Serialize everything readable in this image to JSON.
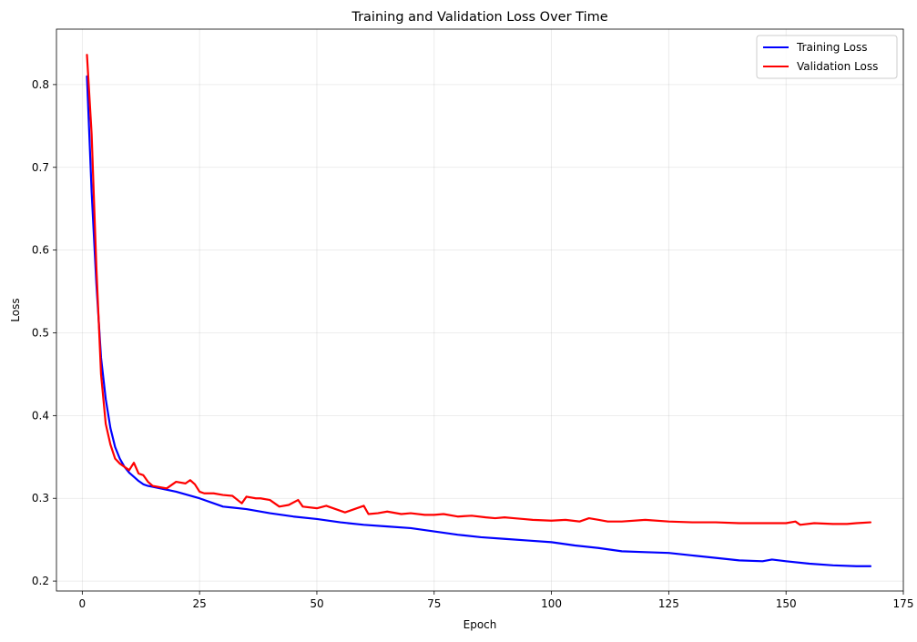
{
  "chart_data": {
    "type": "line",
    "title": "Training and Validation Loss Over Time",
    "xlabel": "Epoch",
    "ylabel": "Loss",
    "xlim": [
      -5.5,
      175
    ],
    "ylim": [
      0.188,
      0.867
    ],
    "xticks": [
      0,
      25,
      50,
      75,
      100,
      125,
      150,
      175
    ],
    "yticks": [
      0.2,
      0.3,
      0.4,
      0.5,
      0.6,
      0.7,
      0.8
    ],
    "xtick_labels": [
      "0",
      "25",
      "50",
      "75",
      "100",
      "125",
      "150",
      "175"
    ],
    "ytick_labels": [
      "0.2",
      "0.3",
      "0.4",
      "0.5",
      "0.6",
      "0.7",
      "0.8"
    ],
    "grid": true,
    "legend_position": "top-right",
    "series": [
      {
        "name": "Training Loss",
        "color": "#0000ff",
        "points": [
          [
            1,
            0.81
          ],
          [
            2,
            0.67
          ],
          [
            3,
            0.56
          ],
          [
            4,
            0.47
          ],
          [
            5,
            0.42
          ],
          [
            6,
            0.385
          ],
          [
            7,
            0.362
          ],
          [
            8,
            0.348
          ],
          [
            9,
            0.338
          ],
          [
            10,
            0.331
          ],
          [
            11,
            0.326
          ],
          [
            12,
            0.321
          ],
          [
            13,
            0.317
          ],
          [
            14,
            0.315
          ],
          [
            15,
            0.314
          ],
          [
            20,
            0.308
          ],
          [
            25,
            0.3
          ],
          [
            30,
            0.29
          ],
          [
            35,
            0.287
          ],
          [
            40,
            0.282
          ],
          [
            45,
            0.278
          ],
          [
            50,
            0.275
          ],
          [
            55,
            0.271
          ],
          [
            60,
            0.268
          ],
          [
            65,
            0.266
          ],
          [
            70,
            0.264
          ],
          [
            75,
            0.26
          ],
          [
            80,
            0.256
          ],
          [
            85,
            0.253
          ],
          [
            90,
            0.251
          ],
          [
            95,
            0.249
          ],
          [
            100,
            0.247
          ],
          [
            105,
            0.243
          ],
          [
            110,
            0.24
          ],
          [
            115,
            0.236
          ],
          [
            120,
            0.235
          ],
          [
            125,
            0.234
          ],
          [
            130,
            0.231
          ],
          [
            135,
            0.228
          ],
          [
            140,
            0.225
          ],
          [
            145,
            0.224
          ],
          [
            147,
            0.226
          ],
          [
            150,
            0.224
          ],
          [
            155,
            0.221
          ],
          [
            160,
            0.219
          ],
          [
            165,
            0.218
          ],
          [
            168,
            0.218
          ]
        ]
      },
      {
        "name": "Validation Loss",
        "color": "#ff0000",
        "points": [
          [
            1,
            0.836
          ],
          [
            2,
            0.74
          ],
          [
            3,
            0.58
          ],
          [
            4,
            0.45
          ],
          [
            5,
            0.39
          ],
          [
            6,
            0.365
          ],
          [
            7,
            0.348
          ],
          [
            8,
            0.342
          ],
          [
            9,
            0.338
          ],
          [
            10,
            0.334
          ],
          [
            11,
            0.343
          ],
          [
            12,
            0.33
          ],
          [
            13,
            0.328
          ],
          [
            14,
            0.32
          ],
          [
            15,
            0.315
          ],
          [
            17,
            0.313
          ],
          [
            18,
            0.312
          ],
          [
            20,
            0.32
          ],
          [
            22,
            0.318
          ],
          [
            23,
            0.322
          ],
          [
            24,
            0.317
          ],
          [
            25,
            0.308
          ],
          [
            26,
            0.306
          ],
          [
            28,
            0.306
          ],
          [
            30,
            0.304
          ],
          [
            32,
            0.303
          ],
          [
            34,
            0.294
          ],
          [
            35,
            0.302
          ],
          [
            37,
            0.3
          ],
          [
            38,
            0.3
          ],
          [
            40,
            0.298
          ],
          [
            42,
            0.29
          ],
          [
            44,
            0.292
          ],
          [
            46,
            0.298
          ],
          [
            47,
            0.29
          ],
          [
            50,
            0.288
          ],
          [
            52,
            0.291
          ],
          [
            54,
            0.287
          ],
          [
            56,
            0.283
          ],
          [
            58,
            0.287
          ],
          [
            60,
            0.291
          ],
          [
            61,
            0.281
          ],
          [
            63,
            0.282
          ],
          [
            65,
            0.284
          ],
          [
            68,
            0.281
          ],
          [
            70,
            0.282
          ],
          [
            73,
            0.28
          ],
          [
            75,
            0.28
          ],
          [
            77,
            0.281
          ],
          [
            80,
            0.278
          ],
          [
            83,
            0.279
          ],
          [
            86,
            0.277
          ],
          [
            88,
            0.276
          ],
          [
            90,
            0.277
          ],
          [
            92,
            0.276
          ],
          [
            94,
            0.275
          ],
          [
            96,
            0.274
          ],
          [
            100,
            0.273
          ],
          [
            103,
            0.274
          ],
          [
            106,
            0.272
          ],
          [
            108,
            0.276
          ],
          [
            110,
            0.274
          ],
          [
            112,
            0.272
          ],
          [
            115,
            0.272
          ],
          [
            120,
            0.274
          ],
          [
            125,
            0.272
          ],
          [
            130,
            0.271
          ],
          [
            135,
            0.271
          ],
          [
            140,
            0.27
          ],
          [
            145,
            0.27
          ],
          [
            150,
            0.27
          ],
          [
            152,
            0.272
          ],
          [
            153,
            0.268
          ],
          [
            156,
            0.27
          ],
          [
            160,
            0.269
          ],
          [
            163,
            0.269
          ],
          [
            165,
            0.27
          ],
          [
            168,
            0.271
          ]
        ]
      }
    ]
  }
}
